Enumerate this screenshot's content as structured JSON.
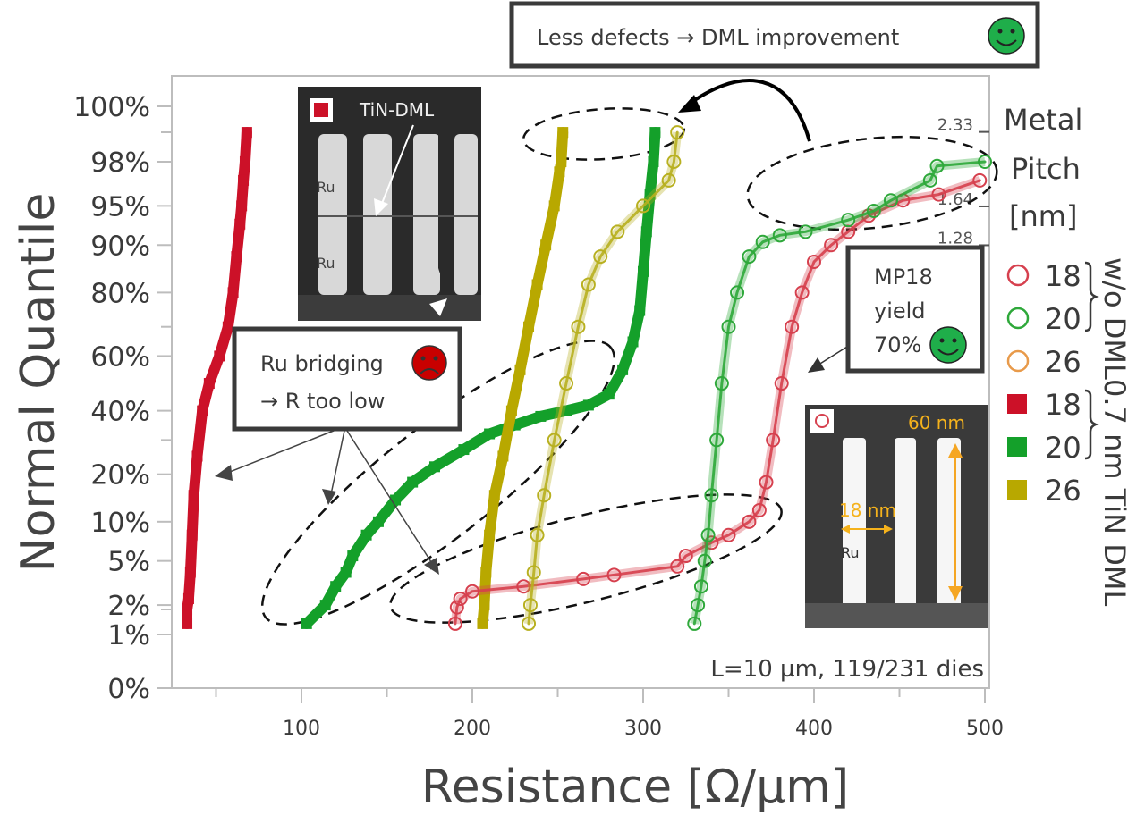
{
  "chart_data": {
    "type": "scatter",
    "title": "",
    "xlabel": "Resistance [Ω/µm]",
    "ylabel": "Normal Quantile",
    "xlim": [
      24,
      500
    ],
    "x_ticks": [
      100,
      200,
      300,
      400,
      500
    ],
    "y_scale": "normal-quantile",
    "y_ticks": [
      "0%",
      "1%",
      "2%",
      "5%",
      "10%",
      "20%",
      "40%",
      "60%",
      "80%",
      "90%",
      "95%",
      "98%",
      "100%"
    ],
    "y_tick_values": [
      0,
      1,
      2,
      5,
      10,
      20,
      40,
      60,
      80,
      90,
      95,
      98,
      100
    ],
    "right_axis_ticks": [
      "2.33",
      "1.64",
      "1.28"
    ],
    "grid": false,
    "legend": {
      "title_lines": [
        "Metal",
        "Pitch",
        "[nm]"
      ],
      "placement": "right",
      "groups": [
        {
          "label": "w/o DML",
          "entries": [
            {
              "name": "18",
              "marker": "circle",
              "color": "#d6404e"
            },
            {
              "name": "20",
              "marker": "circle",
              "color": "#2ea83a"
            },
            {
              "name": "26",
              "marker": "circle",
              "color": "#e89a4a"
            }
          ]
        },
        {
          "label": "0.7 nm TiN DML",
          "entries": [
            {
              "name": "18",
              "marker": "square",
              "color": "#cc1128"
            },
            {
              "name": "20",
              "marker": "square",
              "color": "#14a02a"
            },
            {
              "name": "26",
              "marker": "square",
              "color": "#b8a800"
            }
          ]
        }
      ]
    },
    "series": [
      {
        "name": "MP18 TiN DML",
        "marker": "square",
        "color": "#cc1128",
        "points": [
          [
            33,
            1.3
          ],
          [
            33,
            1.8
          ],
          [
            34,
            2.3
          ],
          [
            35,
            4
          ],
          [
            36,
            8
          ],
          [
            37,
            15
          ],
          [
            39,
            25
          ],
          [
            42,
            40
          ],
          [
            46,
            50
          ],
          [
            52,
            60
          ],
          [
            57,
            70
          ],
          [
            60,
            80
          ],
          [
            62,
            88
          ],
          [
            64,
            93
          ],
          [
            65,
            95
          ],
          [
            66,
            97
          ],
          [
            67,
            98
          ],
          [
            68,
            99
          ]
        ]
      },
      {
        "name": "MP20 TiN DML",
        "marker": "square",
        "color": "#14a02a",
        "points": [
          [
            103,
            1.3
          ],
          [
            114,
            2
          ],
          [
            120,
            3
          ],
          [
            126,
            4
          ],
          [
            130,
            5.5
          ],
          [
            138,
            8
          ],
          [
            145,
            10
          ],
          [
            155,
            14
          ],
          [
            165,
            18
          ],
          [
            178,
            22
          ],
          [
            195,
            27
          ],
          [
            210,
            32
          ],
          [
            225,
            35
          ],
          [
            240,
            38
          ],
          [
            255,
            40
          ],
          [
            268,
            42
          ],
          [
            280,
            46
          ],
          [
            288,
            55
          ],
          [
            294,
            65
          ],
          [
            298,
            75
          ],
          [
            300,
            85
          ],
          [
            302,
            92
          ],
          [
            304,
            96
          ],
          [
            306,
            98
          ],
          [
            307,
            99
          ]
        ]
      },
      {
        "name": "MP26 TiN DML",
        "marker": "square",
        "color": "#b8a800",
        "points": [
          [
            206,
            1.3
          ],
          [
            207,
            2
          ],
          [
            208,
            4
          ],
          [
            210,
            8
          ],
          [
            213,
            15
          ],
          [
            218,
            25
          ],
          [
            223,
            40
          ],
          [
            228,
            55
          ],
          [
            233,
            70
          ],
          [
            238,
            82
          ],
          [
            243,
            90
          ],
          [
            248,
            95
          ],
          [
            251,
            97.5
          ],
          [
            252,
            98
          ],
          [
            253,
            99
          ]
        ]
      },
      {
        "name": "MP18 w/o DML",
        "marker": "circle",
        "color": "#d6404e",
        "points": [
          [
            190,
            1.3
          ],
          [
            191,
            1.9
          ],
          [
            193,
            2.3
          ],
          [
            200,
            2.7
          ],
          [
            230,
            3
          ],
          [
            265,
            3.5
          ],
          [
            283,
            3.8
          ],
          [
            320,
            4.5
          ],
          [
            325,
            5.5
          ],
          [
            340,
            7
          ],
          [
            350,
            8
          ],
          [
            362,
            10
          ],
          [
            368,
            12
          ],
          [
            372,
            18
          ],
          [
            376,
            30
          ],
          [
            381,
            50
          ],
          [
            387,
            70
          ],
          [
            393,
            80
          ],
          [
            400,
            87
          ],
          [
            410,
            90
          ],
          [
            420,
            92
          ],
          [
            432,
            94
          ],
          [
            452,
            95.5
          ],
          [
            473,
            96
          ],
          [
            497,
            97
          ]
        ]
      },
      {
        "name": "MP20 w/o DML",
        "marker": "circle",
        "color": "#2ea83a",
        "points": [
          [
            330,
            1.3
          ],
          [
            332,
            2
          ],
          [
            334,
            3
          ],
          [
            336,
            5
          ],
          [
            338,
            8
          ],
          [
            340,
            15
          ],
          [
            343,
            30
          ],
          [
            346,
            50
          ],
          [
            350,
            70
          ],
          [
            355,
            80
          ],
          [
            362,
            88
          ],
          [
            370,
            90.5
          ],
          [
            380,
            91.5
          ],
          [
            395,
            92
          ],
          [
            420,
            93.5
          ],
          [
            435,
            94.5
          ],
          [
            445,
            95.5
          ],
          [
            468,
            97
          ],
          [
            472,
            97.8
          ],
          [
            500,
            98
          ]
        ]
      },
      {
        "name": "MP26 w/o DML",
        "marker": "circle",
        "color": "#b8b020",
        "points": [
          [
            233,
            1.3
          ],
          [
            234,
            2
          ],
          [
            236,
            4
          ],
          [
            238,
            8
          ],
          [
            242,
            15
          ],
          [
            248,
            30
          ],
          [
            255,
            50
          ],
          [
            262,
            70
          ],
          [
            268,
            82
          ],
          [
            275,
            88
          ],
          [
            285,
            92
          ],
          [
            300,
            95
          ],
          [
            315,
            97
          ],
          [
            318,
            98
          ],
          [
            320,
            99
          ]
        ]
      }
    ],
    "annotations": [
      "Less defects → DML improvement",
      "Ru bridging → R too low",
      "MP18 yield 70%",
      "L=10 µm, 119/231 dies"
    ]
  },
  "annotations": {
    "less_defects": "Less defects → DML improvement",
    "ru_bridging_line1": "Ru bridging",
    "ru_bridging_line2": "→ R too low",
    "mp18_line1": "MP18",
    "mp18_line2": "yield",
    "mp18_line3": "70%",
    "sample_info": "L=10 µm, 119/231 dies"
  },
  "inset_top": {
    "title": "TiN-DML",
    "label_ru_1": "Ru",
    "label_ru_2": "Ru"
  },
  "inset_bottom": {
    "height_label": "60 nm",
    "width_label": "18 nm",
    "label_ru": "Ru"
  },
  "legend_group_labels": {
    "wo_dml": "w/o DML",
    "tin_dml": "0.7 nm TiN DML"
  }
}
